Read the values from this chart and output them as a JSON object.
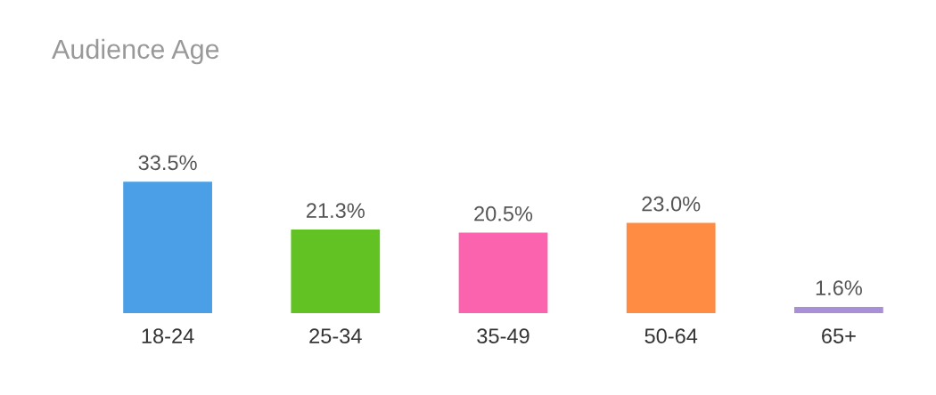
{
  "chart_data": {
    "type": "bar",
    "title": "Audience Age",
    "categories": [
      "18-24",
      "25-34",
      "35-49",
      "50-64",
      "65+"
    ],
    "values": [
      33.5,
      21.3,
      20.5,
      23.0,
      1.6
    ],
    "value_labels": [
      "33.5%",
      "21.3%",
      "20.5%",
      "23.0%",
      "1.6%"
    ],
    "colors": [
      "#4a9fe6",
      "#62c224",
      "#fb63ae",
      "#ff8c42",
      "#a98fd6"
    ],
    "grid": false,
    "legend": false
  }
}
